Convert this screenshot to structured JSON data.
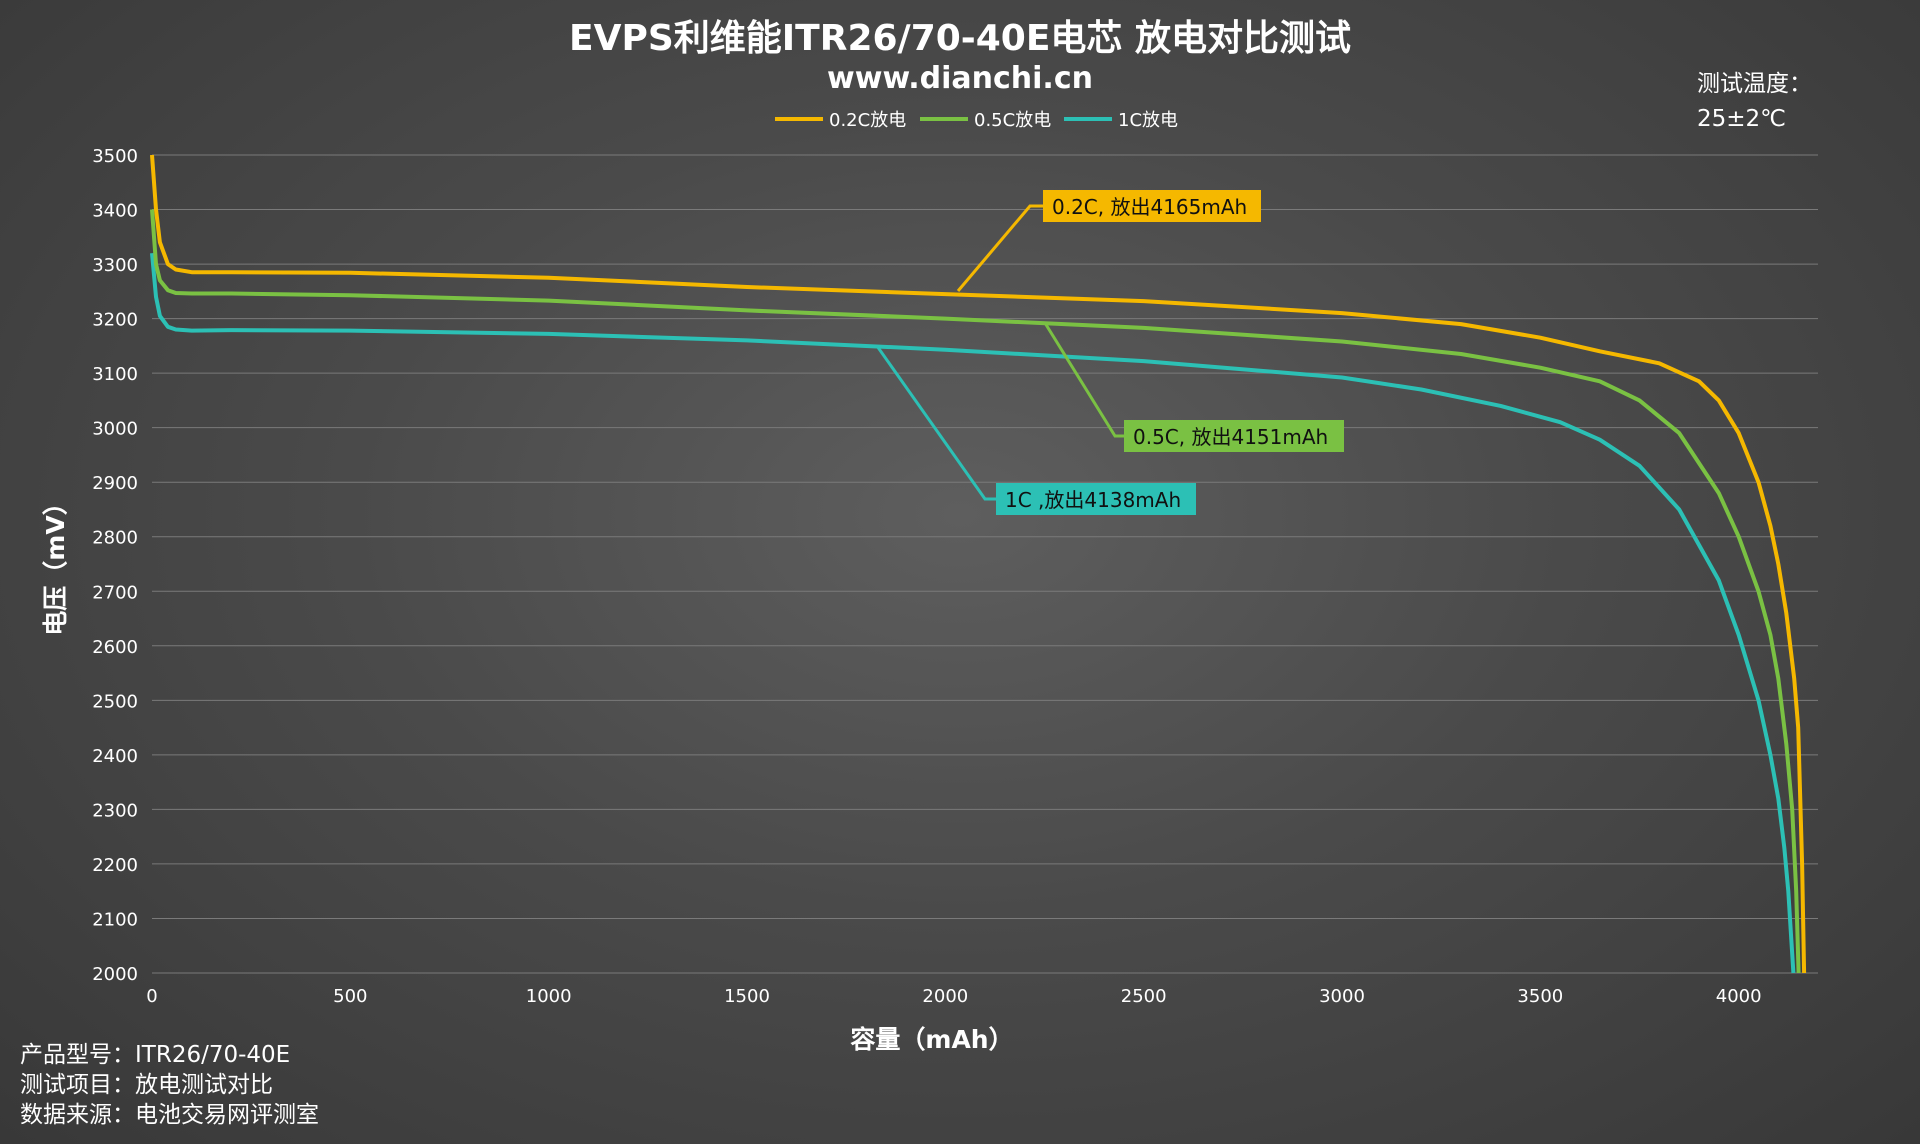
{
  "chart_data": {
    "type": "line",
    "title": "EVPS利维能ITR26/70-40E电芯 放电对比测试",
    "subtitle": "www.dianchi.cn",
    "xlabel": "容量（mAh）",
    "ylabel": "电压（mV）",
    "xlim": [
      0,
      4200
    ],
    "ylim": [
      2000,
      3500
    ],
    "xticks": [
      0,
      500,
      1000,
      1500,
      2000,
      2500,
      3000,
      3500,
      4000
    ],
    "yticks": [
      2000,
      2100,
      2200,
      2300,
      2400,
      2500,
      2600,
      2700,
      2800,
      2900,
      3000,
      3100,
      3200,
      3300,
      3400,
      3500
    ],
    "grid": "horizontal",
    "legend_position": "top-center",
    "series": [
      {
        "name": "0.2C放电",
        "color": "#f5b800",
        "annotation": "0.2C, 放出4165mAh",
        "x": [
          0,
          10,
          20,
          40,
          60,
          100,
          200,
          500,
          1000,
          1500,
          2000,
          2500,
          3000,
          3300,
          3500,
          3650,
          3800,
          3900,
          3950,
          4000,
          4050,
          4080,
          4100,
          4120,
          4140,
          4150,
          4160,
          4165
        ],
        "y": [
          3500,
          3400,
          3340,
          3300,
          3290,
          3285,
          3285,
          3284,
          3275,
          3258,
          3245,
          3232,
          3210,
          3190,
          3165,
          3140,
          3118,
          3085,
          3050,
          2990,
          2900,
          2820,
          2750,
          2660,
          2540,
          2450,
          2200,
          2000
        ]
      },
      {
        "name": "0.5C放电",
        "color": "#7ac143",
        "annotation": "0.5C, 放出4151mAh",
        "x": [
          0,
          10,
          20,
          40,
          60,
          100,
          200,
          500,
          1000,
          1500,
          2000,
          2500,
          3000,
          3300,
          3500,
          3650,
          3750,
          3850,
          3950,
          4000,
          4050,
          4080,
          4100,
          4120,
          4135,
          4145,
          4151
        ],
        "y": [
          3400,
          3300,
          3270,
          3252,
          3247,
          3246,
          3246,
          3243,
          3233,
          3215,
          3200,
          3183,
          3158,
          3135,
          3110,
          3085,
          3050,
          2990,
          2880,
          2800,
          2700,
          2620,
          2540,
          2420,
          2300,
          2150,
          2000
        ]
      },
      {
        "name": "1C放电",
        "color": "#2cc0b5",
        "annotation": "1C ,放出4138mAh",
        "x": [
          0,
          10,
          20,
          40,
          60,
          100,
          200,
          500,
          1000,
          1500,
          2000,
          2500,
          3000,
          3200,
          3400,
          3550,
          3650,
          3750,
          3850,
          3950,
          4000,
          4050,
          4080,
          4100,
          4115,
          4125,
          4132,
          4138
        ],
        "y": [
          3320,
          3240,
          3205,
          3185,
          3180,
          3178,
          3179,
          3178,
          3172,
          3160,
          3143,
          3122,
          3092,
          3070,
          3040,
          3010,
          2978,
          2930,
          2850,
          2720,
          2620,
          2500,
          2400,
          2320,
          2230,
          2150,
          2070,
          2000
        ]
      }
    ]
  },
  "temperature": {
    "label": "测试温度：",
    "value": "25±2℃"
  },
  "footer": [
    {
      "key": "产品型号：",
      "value": "ITR26/70-40E"
    },
    {
      "key": "测试项目：",
      "value": "放电测试对比"
    },
    {
      "key": "数据来源：",
      "value": "电池交易网评测室"
    }
  ]
}
